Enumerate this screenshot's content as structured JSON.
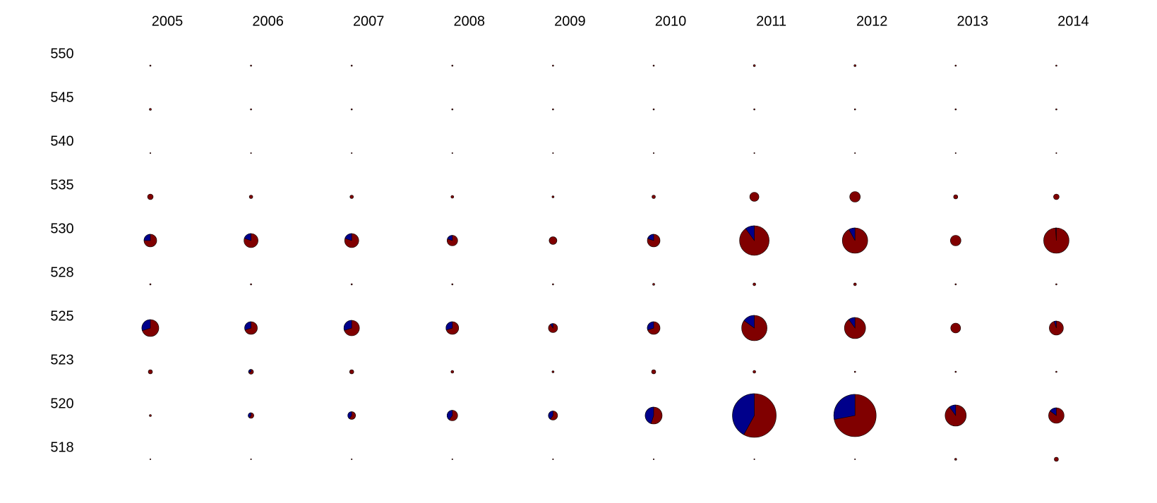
{
  "chart_data": {
    "type": "pie_grid",
    "columns": [
      "2005",
      "2006",
      "2007",
      "2008",
      "2009",
      "2010",
      "2011",
      "2012",
      "2013",
      "2014"
    ],
    "rows": [
      "550",
      "545",
      "540",
      "535",
      "530",
      "528",
      "525",
      "523",
      "520",
      "518"
    ],
    "colors": [
      "#800000",
      "#00008b"
    ],
    "sizes": [
      [
        2,
        2,
        2,
        2,
        2,
        2,
        3,
        3,
        2,
        2
      ],
      [
        3,
        2,
        2,
        2,
        2,
        2,
        2,
        2,
        2,
        2
      ],
      [
        1.5,
        1.5,
        1.5,
        1.5,
        1.5,
        1.5,
        1.5,
        1.5,
        1.5,
        1.5
      ],
      [
        8,
        5,
        5,
        4,
        3,
        5,
        13,
        15,
        6,
        8
      ],
      [
        18,
        20,
        20,
        15,
        11,
        18,
        42,
        36,
        15,
        36
      ],
      [
        2,
        2,
        2,
        2,
        2,
        3,
        4,
        4,
        2,
        2
      ],
      [
        24,
        18,
        22,
        18,
        13,
        18,
        36,
        30,
        14,
        20
      ],
      [
        6,
        7,
        6,
        4,
        3,
        6,
        4,
        2,
        2,
        2
      ],
      [
        3,
        8,
        11,
        15,
        13,
        24,
        62,
        60,
        30,
        22
      ],
      [
        1.5,
        1.5,
        1.5,
        1.5,
        1.5,
        1.5,
        1.5,
        1.5,
        3,
        6
      ]
    ],
    "blue_share": [
      [
        0,
        0,
        0,
        0,
        0,
        0,
        0,
        0,
        0,
        0
      ],
      [
        0,
        0,
        0,
        0,
        0,
        0,
        0,
        0,
        0,
        0
      ],
      [
        0,
        0,
        0,
        0,
        0,
        0,
        0,
        0,
        0,
        0
      ],
      [
        0,
        0,
        0,
        0,
        0,
        0,
        0,
        0,
        0,
        0
      ],
      [
        25,
        20,
        20,
        20,
        0,
        20,
        10,
        8,
        0,
        1
      ],
      [
        0,
        0,
        0,
        0,
        0,
        0,
        0,
        0,
        0,
        0
      ],
      [
        30,
        30,
        30,
        30,
        10,
        30,
        15,
        10,
        0,
        5
      ],
      [
        0,
        30,
        0,
        0,
        0,
        0,
        0,
        0,
        0,
        0
      ],
      [
        0,
        40,
        40,
        40,
        40,
        45,
        42,
        28,
        10,
        15
      ],
      [
        0,
        0,
        0,
        0,
        0,
        0,
        0,
        0,
        0,
        0
      ]
    ]
  }
}
